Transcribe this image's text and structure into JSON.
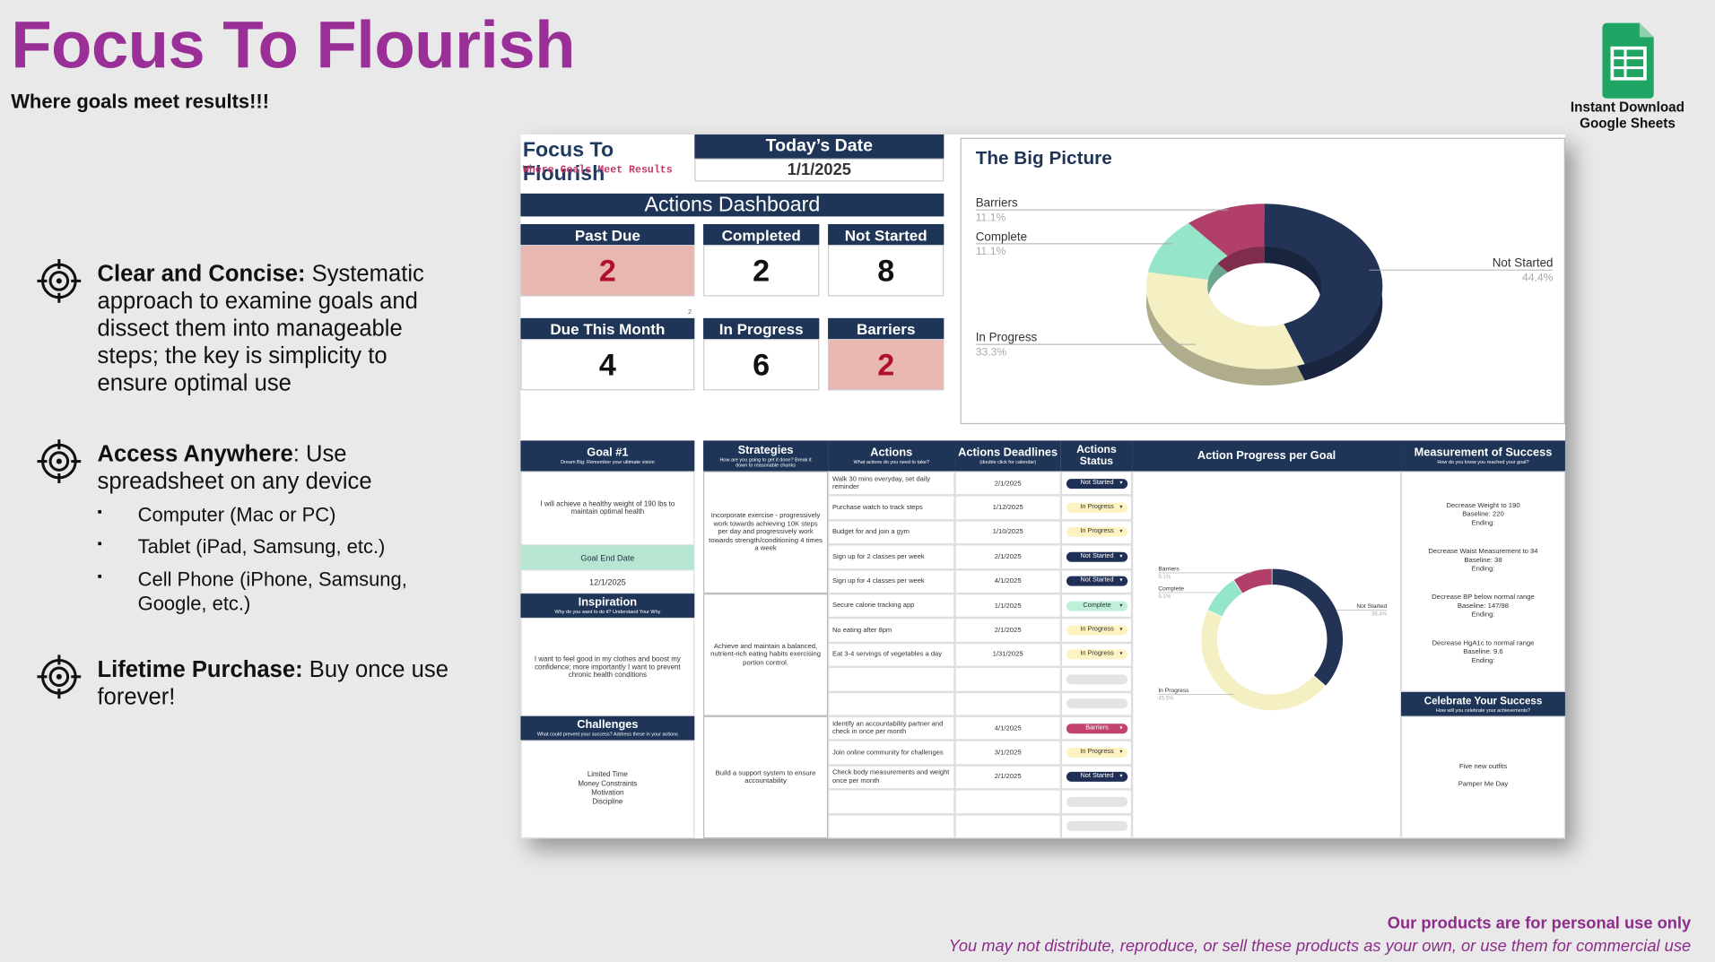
{
  "header": {
    "title": "Focus To Flourish",
    "subtitle": "Where goals meet results!!!"
  },
  "badge": {
    "lines": [
      "Instant Download",
      "Google Sheets"
    ]
  },
  "features": [
    {
      "bold": "Clear and Concise:",
      "text": " Systematic approach to examine goals and dissect them into manageable steps; the key is simplicity to ensure optimal use"
    },
    {
      "bold": "Access Anywhere",
      "text": ": Use spreadsheet on any device",
      "bullets": [
        "Computer (Mac or PC)",
        "Tablet (iPad, Samsung, etc.)",
        "Cell Phone (iPhone, Samsung, Google, etc.)"
      ]
    },
    {
      "bold": "Lifetime Purchase:",
      "text": " Buy once use forever!"
    }
  ],
  "footer": {
    "notice": "Our products are for personal use only",
    "terms": "You may not distribute, reproduce, or sell these products as your own, or use them for commercial use"
  },
  "sheet": {
    "brand_title": "Focus To Flourish",
    "brand_subtitle": "Where Goals Meet Results",
    "date_label": "Today’s Date",
    "date_value": "1/1/2025",
    "dashboard_title": "Actions Dashboard",
    "cards": [
      {
        "label": "Past Due",
        "value": "2",
        "alert": true
      },
      {
        "label": "Completed",
        "value": "2",
        "alert": false
      },
      {
        "label": "Not Started",
        "value": "8",
        "alert": false
      },
      {
        "label": "Due This Month",
        "value": "4",
        "alert": false
      },
      {
        "label": "In Progress",
        "value": "6",
        "alert": false
      },
      {
        "label": "Barriers",
        "value": "2",
        "alert": true
      }
    ],
    "stray_note": "2",
    "big_picture": {
      "title": "The Big Picture",
      "slices": [
        {
          "name": "Not Started",
          "value": 44.4,
          "label": "44.4%",
          "color": "#233356"
        },
        {
          "name": "In Progress",
          "value": 33.3,
          "label": "33.3%",
          "color": "#f5f0c4"
        },
        {
          "name": "Complete",
          "value": 11.1,
          "label": "11.1%",
          "color": "#95e6c8"
        },
        {
          "name": "Barriers",
          "value": 11.1,
          "label": "11.1%",
          "color": "#b23f6b"
        }
      ]
    },
    "columns": [
      {
        "title": "Goal #1",
        "sub": "Dream Big: Remember your ultimate vision"
      },
      {
        "title": "Strategies",
        "sub": "How are you going to get it done? Break it down to reasonable chunks"
      },
      {
        "title": "Actions",
        "sub": "What actions do you need to take?"
      },
      {
        "title": "Actions Deadlines",
        "sub": "(double click for calendar)"
      },
      {
        "title": "Actions Status"
      },
      {
        "title": "Action Progress per Goal"
      },
      {
        "title": "Measurement of Success",
        "sub": "How do you know you reached your goal?"
      }
    ],
    "goal": {
      "text": "I will achieve a healthy weight of 190 lbs to maintain optimal health",
      "end_label": "Goal End Date",
      "end_date": "12/1/2025",
      "inspiration_title": "Inspiration",
      "inspiration_sub": "Why do you want to do it? Understand Your Why",
      "inspiration": "I want to feel good in my clothes and boost my confidence; more importantly I want to prevent chronic health conditions",
      "challenges_title": "Challenges",
      "challenges_sub": "What could prevent your success? Address these in your actions",
      "challenges": [
        "Limited Time",
        "Money Constraints",
        "Motivation",
        "Discipline"
      ]
    },
    "strategies": [
      {
        "text": "Incorporate exercise - progressively work towards achieving 10K steps per day and progressively work towards strength/conditioning 4 times a week",
        "actions": [
          {
            "action": "Walk 30 mins everyday, set daily reminder",
            "deadline": "2/1/2025",
            "status": "Not Started",
            "status_color": "#1f2f55"
          },
          {
            "action": "Purchase watch to track steps",
            "deadline": "1/12/2025",
            "status": "In Progress",
            "status_color": "#fdf2c2"
          },
          {
            "action": "Budget for and join a gym",
            "deadline": "1/10/2025",
            "status": "In Progress",
            "status_color": "#fdf2c2"
          },
          {
            "action": "Sign up for 2 classes per week",
            "deadline": "2/1/2025",
            "status": "Not Started",
            "status_color": "#1f2f55"
          },
          {
            "action": "Sign up for 4 classes per week",
            "deadline": "4/1/2025",
            "status": "Not Started",
            "status_color": "#1f2f55"
          }
        ]
      },
      {
        "text": "Achieve and maintain a balanced, nutrient-rich eating habits exercising portion control.",
        "actions": [
          {
            "action": "Secure calorie tracking app",
            "deadline": "1/1/2025",
            "status": "Complete",
            "status_color": "#bfeed9"
          },
          {
            "action": "No eating after 8pm",
            "deadline": "2/1/2025",
            "status": "In Progress",
            "status_color": "#fdf2c2"
          },
          {
            "action": "Eat 3-4 servings of vegetables a day",
            "deadline": "1/31/2025",
            "status": "In Progress",
            "status_color": "#fdf2c2"
          }
        ]
      },
      {
        "text": "Build a support system to ensure accountability",
        "actions": [
          {
            "action": "Identify an accountability partner and check in once per month",
            "deadline": "4/1/2025",
            "status": "Barriers",
            "status_color": "#c2436f"
          },
          {
            "action": "Join online community for challenges",
            "deadline": "3/1/2025",
            "status": "In Progress",
            "status_color": "#fdf2c2"
          },
          {
            "action": "Check body measurements and weight once per month",
            "deadline": "2/1/2025",
            "status": "Not Started",
            "status_color": "#1f2f55"
          }
        ]
      }
    ],
    "progress": {
      "slices": [
        {
          "name": "Not Started",
          "value": 36.4,
          "label": "36.4%",
          "color": "#233356"
        },
        {
          "name": "In Progress",
          "value": 45.5,
          "label": "45.5%",
          "color": "#f5f0c4"
        },
        {
          "name": "Complete",
          "value": 9.1,
          "label": "9.1%",
          "color": "#95e6c8"
        },
        {
          "name": "Barriers",
          "value": 9.1,
          "label": "9.1%",
          "color": "#b23f6b"
        }
      ]
    },
    "measurements": [
      [
        "Decrease Weight to 190",
        "Baseline: 220",
        "Ending:"
      ],
      [
        "Decrease Waist Measurement to 34",
        "Baseline: 38",
        "Ending:"
      ],
      [
        "Decrease BP below normal range",
        "Baseline: 147/98",
        "Ending:"
      ],
      [
        "Decrease HgA1c to normal range",
        "Baseline: 9.6",
        "Ending:"
      ]
    ],
    "celebrate": {
      "title": "Celebrate Your Success",
      "sub": "How will you celebrate your achievements?",
      "items": [
        "Five new outfits",
        "Pamper Me Day"
      ]
    }
  }
}
